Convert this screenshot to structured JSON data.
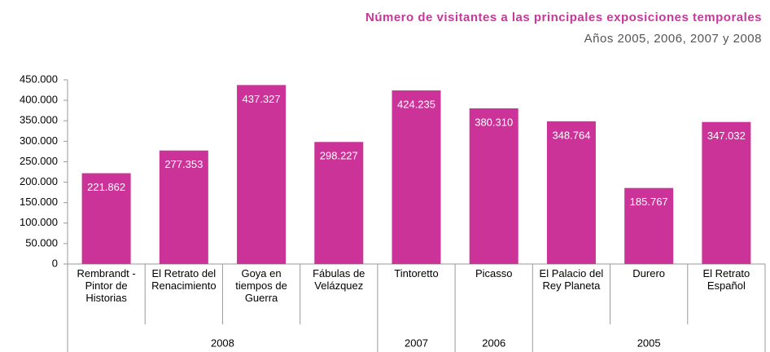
{
  "chart_data": {
    "type": "bar",
    "title": "Número de visitantes a las principales exposiciones temporales",
    "subtitle": "Años 2005, 2006, 2007 y 2008",
    "categories": [
      "Rembrandt - Pintor de Historias",
      "El Retrato del Renacimiento",
      "Goya en tiempos de Guerra",
      "Fábulas de Velázquez",
      "Tintoretto",
      "Picasso",
      "El Palacio del Rey Planeta",
      "Durero",
      "El Retrato Español"
    ],
    "category_groups": [
      "2008",
      "2008",
      "2008",
      "2008",
      "2007",
      "2006",
      "2005",
      "2005",
      "2005"
    ],
    "values": [
      221862,
      277353,
      437327,
      298227,
      424235,
      380310,
      348764,
      185767,
      347032
    ],
    "value_labels": [
      "221.862",
      "277.353",
      "437.327",
      "298.227",
      "424.235",
      "380.310",
      "348.764",
      "185.767",
      "347.032"
    ],
    "color": "#cc3399",
    "ylim": [
      0,
      450000
    ],
    "yticks": [
      0,
      {
        "value": 50000,
        "label": "50.000"
      },
      {
        "value": 100000,
        "label": "100.000"
      },
      {
        "value": 150000,
        "label": "150.000"
      },
      {
        "value": 200000,
        "label": "200.000"
      },
      {
        "value": 250000,
        "label": "250.000"
      },
      {
        "value": 300000,
        "label": "300.000"
      },
      {
        "value": 350000,
        "label": "350.000"
      },
      {
        "value": 400000,
        "label": "400.000"
      },
      {
        "value": 450000,
        "label": "450.000"
      }
    ],
    "grid": false
  }
}
